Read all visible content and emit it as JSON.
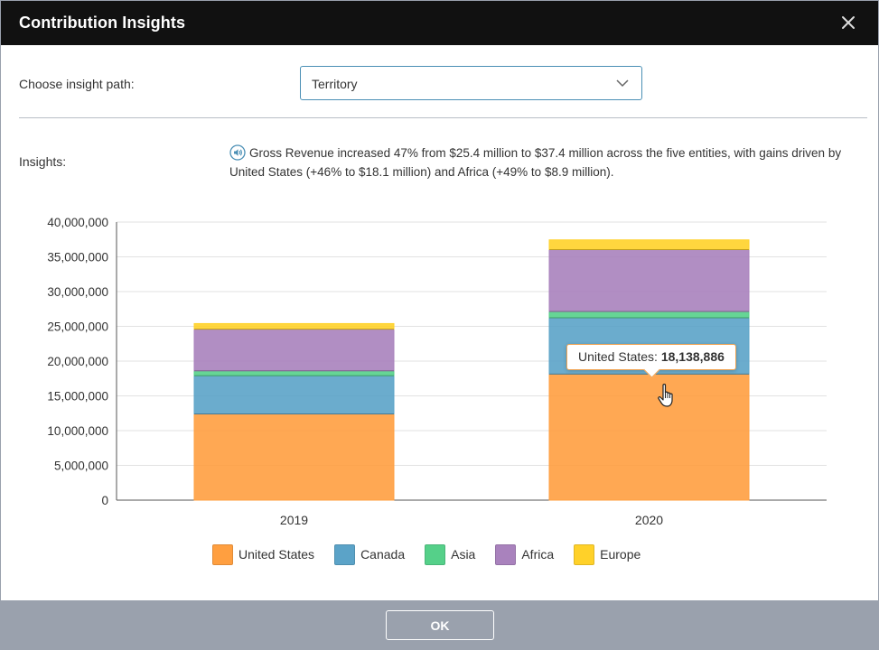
{
  "dialog": {
    "title": "Contribution Insights",
    "close_icon": "close-icon",
    "ok_label": "OK"
  },
  "insight_path": {
    "label": "Choose insight path:",
    "selected": "Territory",
    "chevron_icon": "chevron-down-icon"
  },
  "insights": {
    "label": "Insights:",
    "icon": "speaker-icon",
    "text": "Gross Revenue increased 47% from $25.4 million to $37.4 million across the five entities, with gains driven by United States (+46% to $18.1 million) and Africa (+49% to $8.9 million)."
  },
  "tooltip": {
    "series": "United States:",
    "value": "18,138,886"
  },
  "colors": {
    "United States": "#ff9f40",
    "Canada": "#5ba3c8",
    "Asia": "#55d089",
    "Africa": "#a982bd",
    "Europe": "#ffd129"
  },
  "chart_data": {
    "type": "bar",
    "stacked": true,
    "categories": [
      "2019",
      "2020"
    ],
    "series": [
      {
        "name": "United States",
        "values": [
          12400000,
          18138886
        ]
      },
      {
        "name": "Canada",
        "values": [
          5500000,
          8100000
        ]
      },
      {
        "name": "Asia",
        "values": [
          700000,
          900000
        ]
      },
      {
        "name": "Africa",
        "values": [
          6000000,
          8900000
        ]
      },
      {
        "name": "Europe",
        "values": [
          800000,
          1400000
        ]
      }
    ],
    "ylim": [
      0,
      40000000
    ],
    "yticks": [
      0,
      5000000,
      10000000,
      15000000,
      20000000,
      25000000,
      30000000,
      35000000,
      40000000
    ],
    "ytick_labels": [
      "0",
      "5,000,000",
      "10,000,000",
      "15,000,000",
      "20,000,000",
      "25,000,000",
      "30,000,000",
      "35,000,000",
      "40,000,000"
    ],
    "grid": true,
    "legend": "bottom"
  }
}
